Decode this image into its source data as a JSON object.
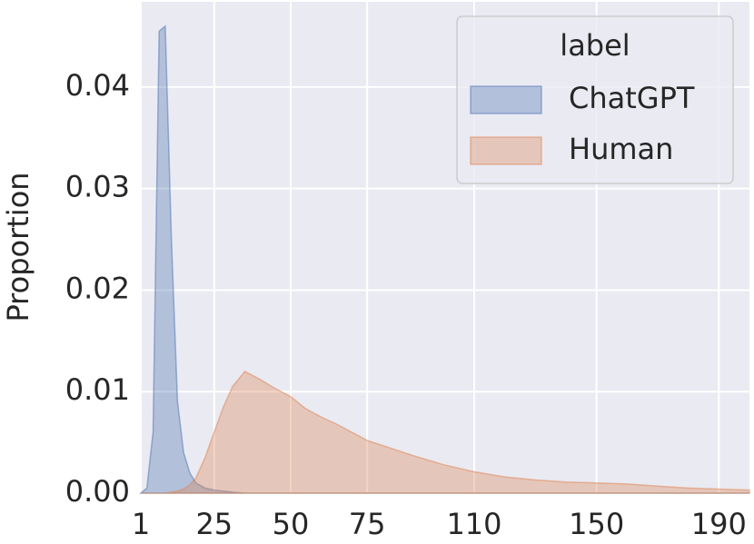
{
  "chart_data": {
    "type": "area",
    "ylabel": "Proportion",
    "x": [
      1,
      3,
      5,
      7,
      9,
      11,
      13,
      15,
      17,
      19,
      22,
      25,
      28,
      31,
      35,
      40,
      45,
      50,
      55,
      60,
      65,
      70,
      75,
      80,
      90,
      100,
      110,
      120,
      130,
      140,
      150,
      160,
      170,
      180,
      190,
      200
    ],
    "series": [
      {
        "name": "ChatGPT",
        "color": "#4c72b0",
        "values": [
          0,
          0.0005,
          0.006,
          0.0455,
          0.046,
          0.025,
          0.009,
          0.004,
          0.002,
          0.001,
          0.0005,
          0.0003,
          0.0002,
          0.0001,
          0,
          0,
          0,
          0,
          0,
          0,
          0,
          0,
          0,
          0,
          0,
          0,
          0,
          0,
          0,
          0,
          0,
          0,
          0,
          0,
          0,
          0
        ]
      },
      {
        "name": "Human",
        "color": "#dd8452",
        "values": [
          0,
          0,
          0,
          0,
          0,
          0.0001,
          0.0002,
          0.0004,
          0.0008,
          0.0015,
          0.0035,
          0.006,
          0.0085,
          0.0105,
          0.012,
          0.0112,
          0.0103,
          0.0095,
          0.0083,
          0.0075,
          0.0068,
          0.006,
          0.0052,
          0.0047,
          0.0037,
          0.0028,
          0.0021,
          0.0016,
          0.0013,
          0.0011,
          0.001,
          0.0009,
          0.0007,
          0.0005,
          0.0004,
          0.0003
        ]
      }
    ],
    "xlim": [
      1,
      200
    ],
    "xticks": [
      1,
      25,
      50,
      75,
      110,
      150,
      190
    ],
    "ylim": [
      0,
      0.0484
    ],
    "yticks": [
      {
        "value": 0,
        "label": "0.00"
      },
      {
        "value": 0.01,
        "label": "0.01"
      },
      {
        "value": 0.02,
        "label": "0.02"
      },
      {
        "value": 0.03,
        "label": "0.03"
      },
      {
        "value": 0.04,
        "label": "0.04"
      }
    ],
    "grid": true,
    "legend": {
      "title": "label",
      "position": "upper right"
    }
  }
}
